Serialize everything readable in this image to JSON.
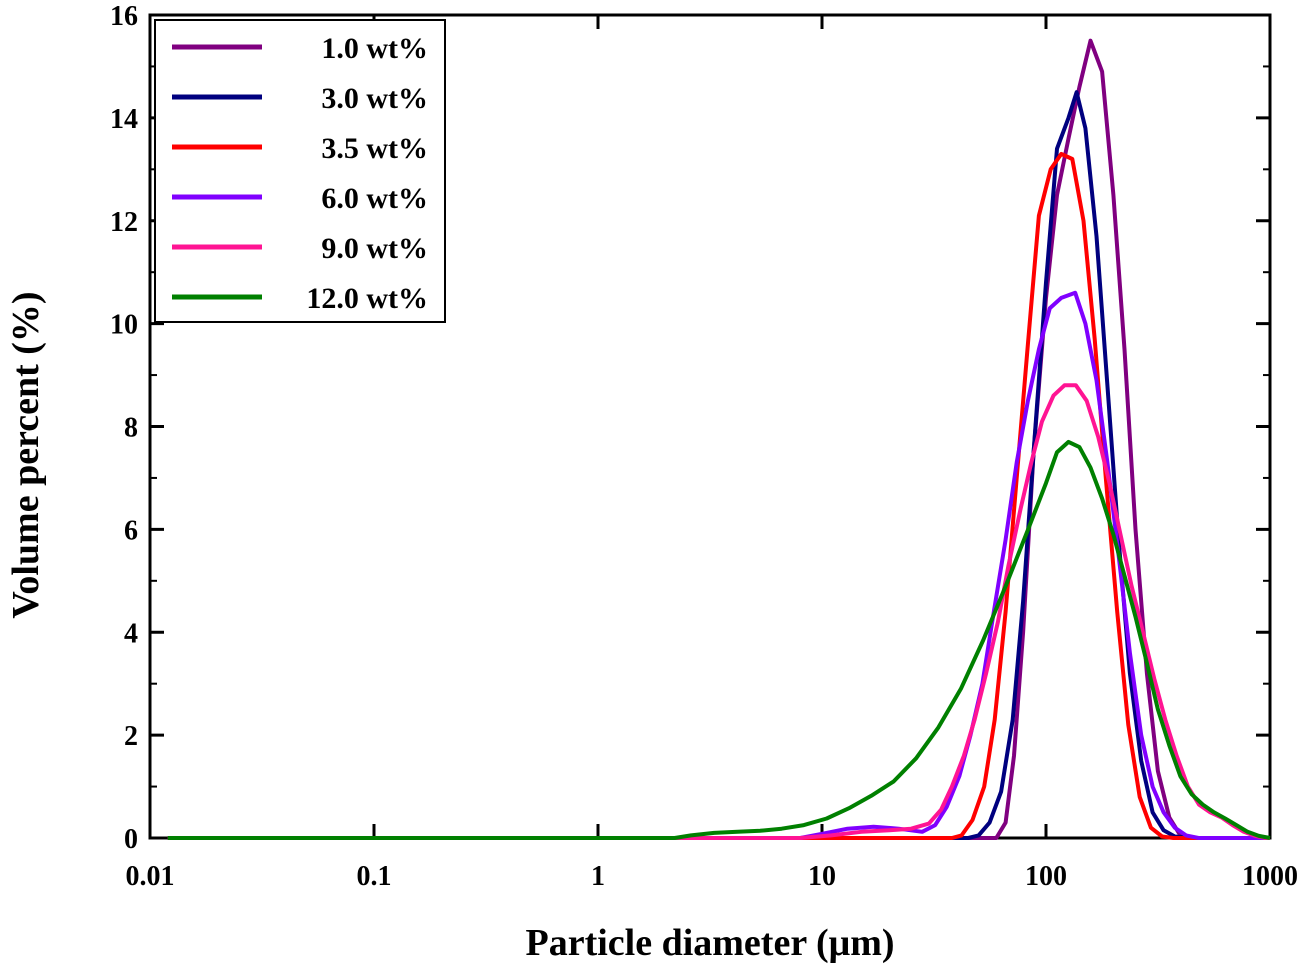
{
  "chart_data": {
    "type": "line",
    "xlabel": "Particle diameter (μm)",
    "ylabel": "Volume percent (%)",
    "x_scale": "log",
    "xlim": [
      0.01,
      1000
    ],
    "ylim": [
      0,
      16
    ],
    "x_ticks": [
      {
        "value": 0.01,
        "label": "0.01"
      },
      {
        "value": 0.1,
        "label": "0.1"
      },
      {
        "value": 1,
        "label": "1"
      },
      {
        "value": 10,
        "label": "10"
      },
      {
        "value": 100,
        "label": "100"
      },
      {
        "value": 1000,
        "label": "1000"
      }
    ],
    "y_ticks": [
      {
        "value": 0,
        "label": "0"
      },
      {
        "value": 2,
        "label": "2"
      },
      {
        "value": 4,
        "label": "4"
      },
      {
        "value": 6,
        "label": "6"
      },
      {
        "value": 8,
        "label": "8"
      },
      {
        "value": 10,
        "label": "10"
      },
      {
        "value": 12,
        "label": "12"
      },
      {
        "value": 14,
        "label": "14"
      },
      {
        "value": 16,
        "label": "16"
      }
    ],
    "grid": false,
    "legend_position": "top-left",
    "series": [
      {
        "name": "1.0 wt%",
        "color": "#800080",
        "points": [
          [
            0.012,
            0
          ],
          [
            50,
            0
          ],
          [
            60,
            0
          ],
          [
            66,
            0.3
          ],
          [
            72,
            1.6
          ],
          [
            79,
            4.0
          ],
          [
            88,
            7.5
          ],
          [
            100,
            10.5
          ],
          [
            112,
            12.5
          ],
          [
            126,
            13.6
          ],
          [
            141,
            14.6
          ],
          [
            158,
            15.5
          ],
          [
            178,
            14.9
          ],
          [
            200,
            12.5
          ],
          [
            224,
            9.5
          ],
          [
            251,
            6.0
          ],
          [
            282,
            3.2
          ],
          [
            316,
            1.3
          ],
          [
            355,
            0.4
          ],
          [
            398,
            0.05
          ],
          [
            450,
            0
          ],
          [
            1000,
            0
          ]
        ]
      },
      {
        "name": "3.0 wt%",
        "color": "#00007f",
        "points": [
          [
            0.012,
            0
          ],
          [
            45,
            0
          ],
          [
            50,
            0.05
          ],
          [
            56,
            0.3
          ],
          [
            63,
            0.9
          ],
          [
            71,
            2.3
          ],
          [
            79,
            4.6
          ],
          [
            89,
            7.8
          ],
          [
            100,
            10.8
          ],
          [
            112,
            13.4
          ],
          [
            126,
            14.0
          ],
          [
            137,
            14.5
          ],
          [
            150,
            13.8
          ],
          [
            168,
            11.7
          ],
          [
            188,
            8.8
          ],
          [
            211,
            5.8
          ],
          [
            237,
            3.2
          ],
          [
            266,
            1.5
          ],
          [
            299,
            0.5
          ],
          [
            335,
            0.15
          ],
          [
            376,
            0.03
          ],
          [
            450,
            0
          ],
          [
            1000,
            0
          ]
        ]
      },
      {
        "name": "3.5 wt%",
        "color": "#ff0000",
        "points": [
          [
            0.012,
            0
          ],
          [
            38,
            0
          ],
          [
            42,
            0.05
          ],
          [
            47,
            0.35
          ],
          [
            53,
            1.0
          ],
          [
            59,
            2.3
          ],
          [
            66,
            4.4
          ],
          [
            74,
            7.0
          ],
          [
            83,
            9.6
          ],
          [
            93,
            12.1
          ],
          [
            105,
            13.0
          ],
          [
            117,
            13.3
          ],
          [
            131,
            13.2
          ],
          [
            147,
            12.0
          ],
          [
            165,
            9.7
          ],
          [
            185,
            7.0
          ],
          [
            208,
            4.4
          ],
          [
            233,
            2.2
          ],
          [
            262,
            0.8
          ],
          [
            294,
            0.2
          ],
          [
            330,
            0.03
          ],
          [
            370,
            0
          ],
          [
            1000,
            0
          ]
        ]
      },
      {
        "name": "6.0 wt%",
        "color": "#8000ff",
        "points": [
          [
            0.012,
            0
          ],
          [
            2,
            0
          ],
          [
            8,
            0
          ],
          [
            10,
            0.08
          ],
          [
            13,
            0.18
          ],
          [
            17,
            0.22
          ],
          [
            22,
            0.18
          ],
          [
            28,
            0.12
          ],
          [
            32,
            0.25
          ],
          [
            36,
            0.6
          ],
          [
            41,
            1.2
          ],
          [
            46,
            2.0
          ],
          [
            52,
            3.0
          ],
          [
            58,
            4.3
          ],
          [
            66,
            5.8
          ],
          [
            74,
            7.3
          ],
          [
            83,
            8.5
          ],
          [
            93,
            9.5
          ],
          [
            104,
            10.3
          ],
          [
            117,
            10.5
          ],
          [
            135,
            10.6
          ],
          [
            150,
            10.0
          ],
          [
            168,
            8.9
          ],
          [
            188,
            7.3
          ],
          [
            211,
            5.5
          ],
          [
            237,
            3.6
          ],
          [
            266,
            2.0
          ],
          [
            299,
            1.0
          ],
          [
            335,
            0.5
          ],
          [
            376,
            0.2
          ],
          [
            422,
            0.05
          ],
          [
            480,
            0
          ],
          [
            1000,
            0
          ]
        ]
      },
      {
        "name": "9.0 wt%",
        "color": "#ff1493",
        "points": [
          [
            0.012,
            0
          ],
          [
            2,
            0
          ],
          [
            8,
            0
          ],
          [
            11,
            0.05
          ],
          [
            15,
            0.12
          ],
          [
            20,
            0.15
          ],
          [
            25,
            0.18
          ],
          [
            30,
            0.28
          ],
          [
            34,
            0.55
          ],
          [
            38,
            1.0
          ],
          [
            43,
            1.6
          ],
          [
            48,
            2.3
          ],
          [
            54,
            3.2
          ],
          [
            61,
            4.2
          ],
          [
            68,
            5.3
          ],
          [
            77,
            6.4
          ],
          [
            86,
            7.3
          ],
          [
            96,
            8.1
          ],
          [
            108,
            8.6
          ],
          [
            121,
            8.8
          ],
          [
            136,
            8.8
          ],
          [
            152,
            8.5
          ],
          [
            171,
            7.8
          ],
          [
            192,
            6.9
          ],
          [
            215,
            5.9
          ],
          [
            241,
            4.9
          ],
          [
            271,
            4.0
          ],
          [
            304,
            3.1
          ],
          [
            341,
            2.3
          ],
          [
            383,
            1.6
          ],
          [
            430,
            1.0
          ],
          [
            482,
            0.65
          ],
          [
            541,
            0.5
          ],
          [
            607,
            0.4
          ],
          [
            681,
            0.25
          ],
          [
            764,
            0.12
          ],
          [
            857,
            0.04
          ],
          [
            962,
            0
          ],
          [
            1000,
            0
          ]
        ]
      },
      {
        "name": "12.0 wt%",
        "color": "#008000",
        "points": [
          [
            0.012,
            0
          ],
          [
            1,
            0
          ],
          [
            2.2,
            0
          ],
          [
            2.6,
            0.05
          ],
          [
            3.3,
            0.1
          ],
          [
            4.2,
            0.12
          ],
          [
            5.3,
            0.14
          ],
          [
            6.6,
            0.18
          ],
          [
            8.3,
            0.25
          ],
          [
            10.5,
            0.38
          ],
          [
            13.2,
            0.58
          ],
          [
            16.6,
            0.82
          ],
          [
            20.9,
            1.1
          ],
          [
            26.3,
            1.55
          ],
          [
            33.1,
            2.15
          ],
          [
            41.7,
            2.9
          ],
          [
            52.5,
            3.85
          ],
          [
            66.1,
            4.9
          ],
          [
            83.2,
            6.0
          ],
          [
            100,
            6.9
          ],
          [
            112,
            7.5
          ],
          [
            126,
            7.7
          ],
          [
            141,
            7.6
          ],
          [
            158,
            7.2
          ],
          [
            178,
            6.6
          ],
          [
            200,
            5.9
          ],
          [
            224,
            5.1
          ],
          [
            251,
            4.3
          ],
          [
            282,
            3.4
          ],
          [
            316,
            2.5
          ],
          [
            355,
            1.8
          ],
          [
            398,
            1.2
          ],
          [
            447,
            0.85
          ],
          [
            501,
            0.65
          ],
          [
            562,
            0.5
          ],
          [
            631,
            0.38
          ],
          [
            708,
            0.25
          ],
          [
            794,
            0.12
          ],
          [
            891,
            0.04
          ],
          [
            1000,
            0
          ]
        ]
      }
    ]
  }
}
